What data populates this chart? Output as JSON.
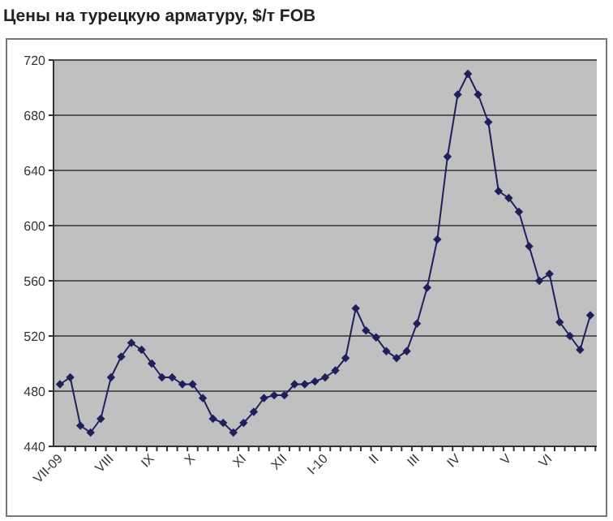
{
  "chart_data": {
    "type": "line",
    "title": "Цены на турецкую арматуру, $/т FOB",
    "categories": [
      "VII-09",
      null,
      null,
      null,
      null,
      "VIII",
      null,
      null,
      null,
      "IX",
      null,
      null,
      null,
      "X",
      null,
      null,
      null,
      null,
      "XI",
      null,
      null,
      null,
      "XII",
      null,
      null,
      null,
      "I-10",
      null,
      null,
      null,
      null,
      "II",
      null,
      null,
      null,
      "III",
      null,
      null,
      null,
      "IV",
      null,
      null,
      null,
      null,
      "V",
      null,
      null,
      null,
      "VI",
      null,
      null,
      null,
      null
    ],
    "series": [
      {
        "color": "#1f1f5c",
        "values": [
          485,
          490,
          455,
          450,
          460,
          490,
          505,
          515,
          510,
          500,
          490,
          490,
          485,
          485,
          475,
          460,
          457,
          450,
          457,
          465,
          475,
          477,
          477,
          485,
          485,
          487,
          490,
          495,
          504,
          540,
          524,
          519,
          509,
          504,
          509,
          529,
          555,
          590,
          650,
          695,
          710,
          695,
          675,
          625,
          620,
          610,
          585,
          560,
          565,
          530,
          520,
          510,
          535
        ]
      }
    ],
    "ylim": [
      440,
      720
    ],
    "yticks": [
      440,
      480,
      520,
      560,
      600,
      640,
      680,
      720
    ],
    "grid": "y",
    "marker": "diamond",
    "line_style": "solid"
  }
}
